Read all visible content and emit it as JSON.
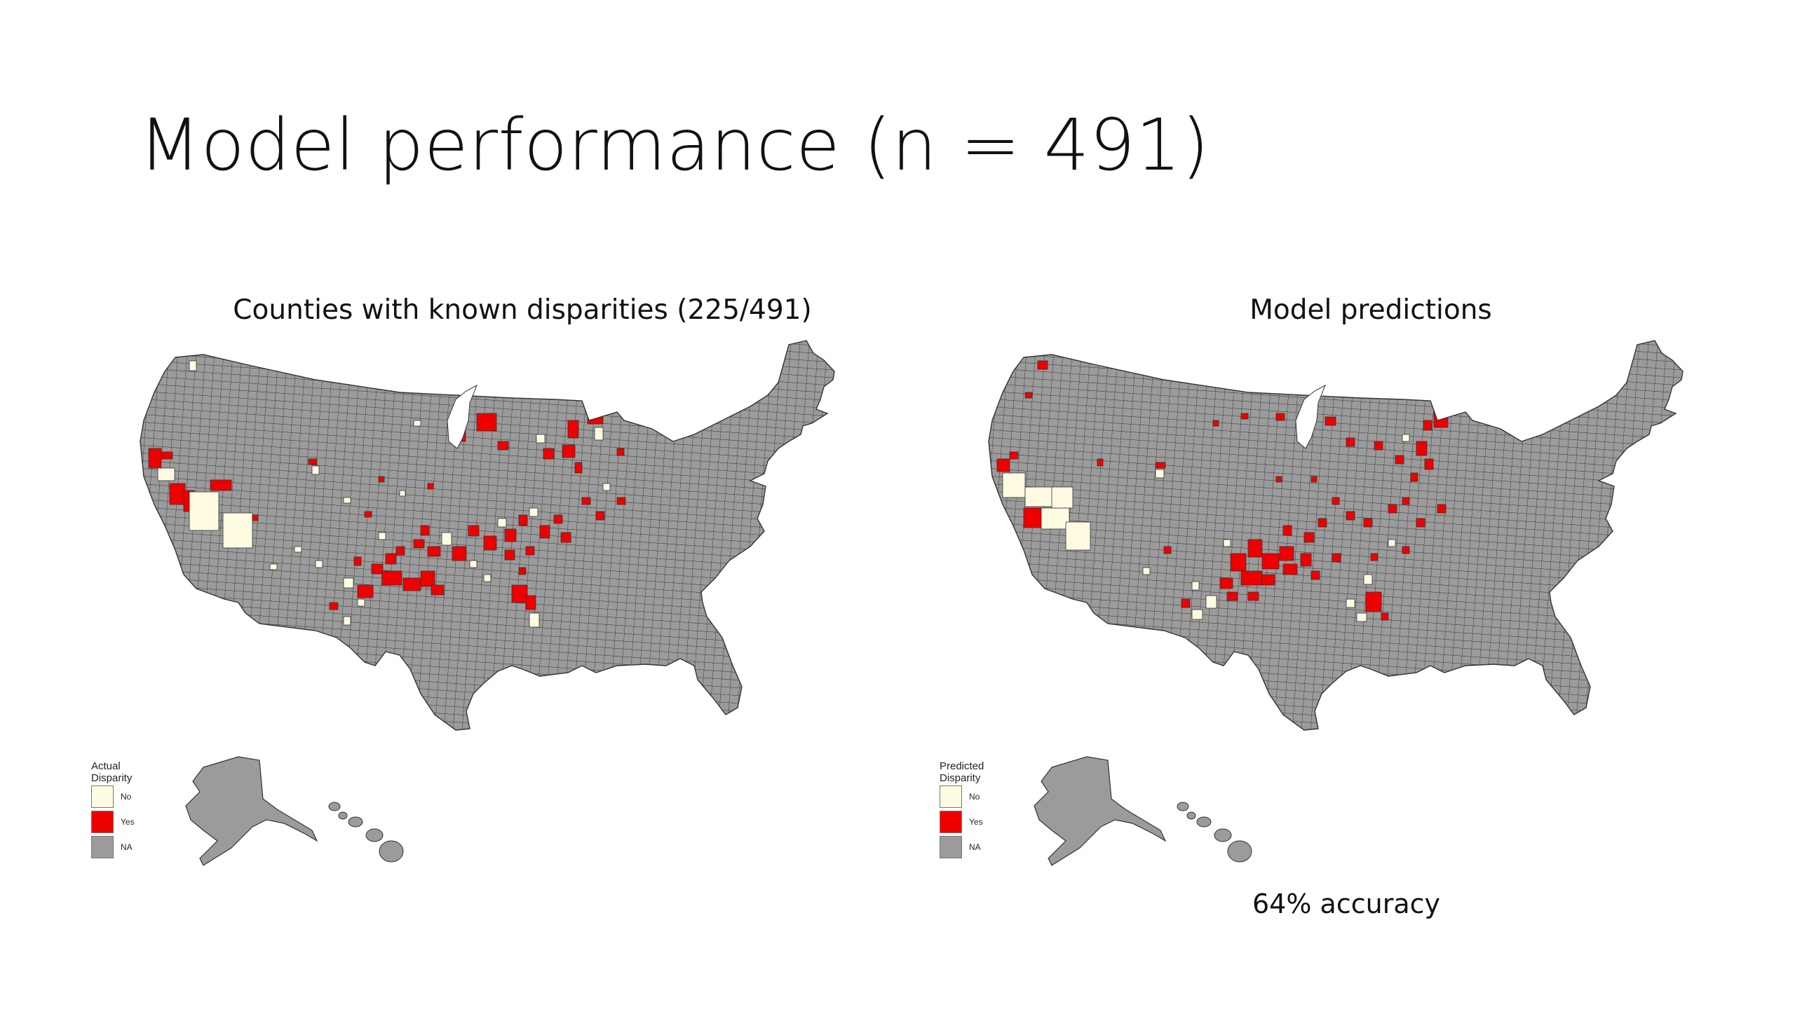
{
  "slide": {
    "title": "Model performance (n = 491)"
  },
  "colors": {
    "no": "#fffbe3",
    "yes": "#ee0000",
    "na": "#9b9b9b",
    "border": "#333333"
  },
  "maps": [
    {
      "title": "Counties with known disparities (225/491)",
      "legend": {
        "title": "Actual Disparity",
        "items": [
          {
            "label": "No",
            "key": "no"
          },
          {
            "label": "Yes",
            "key": "yes"
          },
          {
            "label": "NA",
            "key": "na"
          }
        ]
      }
    },
    {
      "title": "Model predictions",
      "legend": {
        "title": "Predicted Disparity",
        "items": [
          {
            "label": "No",
            "key": "no"
          },
          {
            "label": "Yes",
            "key": "yes"
          },
          {
            "label": "NA",
            "key": "na"
          }
        ]
      }
    }
  ],
  "accuracy_label": "64% accuracy"
}
